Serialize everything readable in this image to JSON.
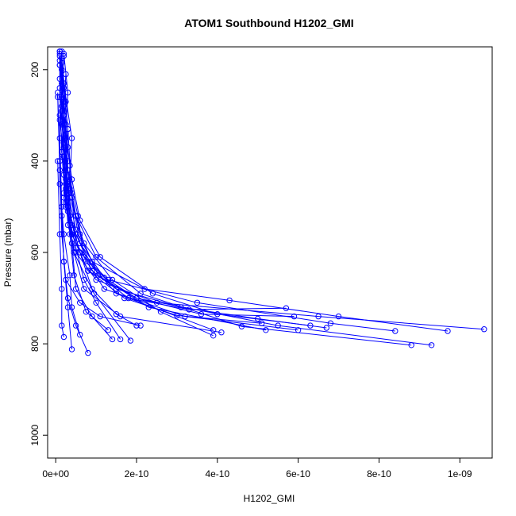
{
  "chart_data": {
    "type": "scatter",
    "mode": "lines+points",
    "title": "ATOM1 Southbound H1202_GMI",
    "xlabel": "H1202_GMI",
    "ylabel": "Pressure (mbar)",
    "xlim": [
      -2e-11,
      1.08e-09
    ],
    "ylim": [
      1050,
      150
    ],
    "y_reversed": true,
    "x_ticks": [
      0,
      2e-10,
      4e-10,
      6e-10,
      8e-10,
      1e-09
    ],
    "x_tick_labels": [
      "0e+00",
      "2e-10",
      "4e-10",
      "6e-10",
      "8e-10",
      "1e-09"
    ],
    "y_ticks": [
      200,
      400,
      600,
      800,
      1000
    ],
    "y_tick_labels": [
      "200",
      "400",
      "600",
      "800",
      "1000"
    ],
    "color": "#0000ff",
    "series": [
      {
        "x": [
          1.5e-11,
          1e-11,
          2e-11,
          1.5e-11,
          2.5e-11,
          3e-11,
          5e-11,
          1e-10,
          2.5e-10,
          6.5e-10,
          1.06e-09
        ],
        "y": [
          160,
          220,
          300,
          380,
          460,
          540,
          600,
          660,
          710,
          740,
          768
        ]
      },
      {
        "x": [
          1e-11,
          2e-11,
          1.5e-11,
          3e-11,
          2e-11,
          4e-11,
          8e-11,
          2e-10,
          5.5e-10,
          9.3e-10
        ],
        "y": [
          165,
          240,
          320,
          400,
          480,
          560,
          640,
          700,
          760,
          803
        ]
      },
      {
        "x": [
          2e-11,
          1.5e-11,
          2.5e-11,
          2e-11,
          3.5e-11,
          6e-11,
          1.3e-10,
          3.5e-10,
          6.8e-10,
          8.4e-10
        ],
        "y": [
          170,
          260,
          350,
          430,
          520,
          600,
          660,
          710,
          755,
          772
        ]
      },
      {
        "x": [
          1e-11,
          1.5e-11,
          1e-11,
          2e-11,
          3e-11,
          5e-11,
          9e-11,
          2.2e-10,
          4.3e-10,
          7e-10,
          9.7e-10
        ],
        "y": [
          160,
          230,
          310,
          390,
          470,
          550,
          620,
          680,
          705,
          740,
          772
        ]
      },
      {
        "x": [
          1.5e-11,
          2.5e-11,
          2e-11,
          3e-11,
          4e-11,
          8e-11,
          1.5e-10,
          3.1e-10,
          5e-10,
          6.7e-10
        ],
        "y": [
          175,
          270,
          360,
          450,
          540,
          620,
          680,
          720,
          745,
          765
        ]
      },
      {
        "x": [
          1e-11,
          2e-11,
          1.5e-11,
          3.5e-11,
          7e-11,
          1.4e-10,
          2.6e-10,
          3.9e-10
        ],
        "y": [
          180,
          280,
          380,
          480,
          580,
          660,
          730,
          782
        ]
      },
      {
        "x": [
          2e-11,
          3e-11,
          2.5e-11,
          4e-11,
          6e-11,
          1.1e-10,
          2.4e-10,
          4e-10,
          6.3e-10
        ],
        "y": [
          165,
          250,
          340,
          440,
          530,
          610,
          690,
          735,
          760
        ]
      },
      {
        "x": [
          1e-11,
          1.5e-11,
          2e-11,
          2.5e-11,
          4.5e-11,
          9e-11,
          1.8e-10,
          3.3e-10,
          5.7e-10
        ],
        "y": [
          190,
          290,
          390,
          490,
          570,
          640,
          700,
          725,
          722
        ]
      },
      {
        "x": [
          1.5e-11,
          2.5e-11,
          3e-11,
          5e-11,
          1e-10,
          2.1e-10,
          4.6e-10,
          8.8e-10
        ],
        "y": [
          200,
          320,
          420,
          520,
          610,
          690,
          762,
          803
        ]
      },
      {
        "x": [
          1e-11,
          1e-11,
          2e-11,
          4e-11,
          6e-11,
          1.2e-10,
          2e-10,
          3.6e-10,
          5.9e-10
        ],
        "y": [
          170,
          260,
          370,
          480,
          580,
          655,
          700,
          735,
          740
        ]
      },
      {
        "x": [
          2.5e-11,
          2e-11,
          3.5e-11,
          3e-11,
          4.5e-11,
          7e-11,
          1.6e-10,
          4.1e-10
        ],
        "y": [
          210,
          300,
          410,
          510,
          600,
          680,
          740,
          775
        ]
      },
      {
        "x": [
          1.5e-11,
          3e-11,
          2.5e-11,
          4e-11,
          8e-11,
          1.7e-10,
          3e-10,
          5.1e-10
        ],
        "y": [
          185,
          330,
          450,
          560,
          640,
          700,
          738,
          755
        ]
      },
      {
        "x": [
          1e-11,
          2e-11,
          3e-11,
          2e-11,
          5e-11,
          9e-11,
          1.5e-10,
          3.9e-10
        ],
        "y": [
          160,
          270,
          370,
          470,
          560,
          630,
          690,
          770
        ]
      },
      {
        "x": [
          2e-11,
          4e-11,
          3.5e-11,
          6e-11,
          1.05e-10,
          2.3e-10,
          5.2e-10
        ],
        "y": [
          230,
          350,
          460,
          560,
          650,
          720,
          770
        ]
      },
      {
        "x": [
          1e-11,
          1.5e-11,
          2.5e-11,
          4.5e-11,
          9.5e-11,
          1.85e-10
        ],
        "y": [
          240,
          380,
          500,
          600,
          690,
          793
        ]
      },
      {
        "x": [
          1.5e-11,
          2e-11,
          3e-11,
          5.5e-11,
          7e-11,
          1.2e-10,
          3.2e-10,
          6e-10
        ],
        "y": [
          175,
          300,
          420,
          520,
          610,
          680,
          740,
          770
        ]
      },
      {
        "x": [
          5e-12,
          1e-11,
          1.5e-11,
          2e-11,
          3e-11,
          5e-11,
          8e-11
        ],
        "y": [
          250,
          400,
          520,
          620,
          700,
          760,
          820
        ]
      },
      {
        "x": [
          1e-11,
          1e-11,
          2e-11,
          3.5e-11,
          4e-11,
          6e-11
        ],
        "y": [
          300,
          450,
          560,
          650,
          720,
          780
        ]
      },
      {
        "x": [
          2e-11,
          3e-11,
          4e-11,
          5e-11,
          9e-11,
          1.4e-10
        ],
        "y": [
          320,
          460,
          580,
          680,
          740,
          790
        ]
      },
      {
        "x": [
          1e-11,
          1.5e-11,
          2e-11,
          3e-11,
          4e-11
        ],
        "y": [
          350,
          500,
          620,
          720,
          812
        ]
      },
      {
        "x": [
          5e-12,
          1e-11,
          1.5e-11,
          2.5e-11,
          6e-11,
          1.1e-10,
          2.1e-10
        ],
        "y": [
          260,
          420,
          560,
          660,
          710,
          740,
          760
        ]
      },
      {
        "x": [
          1.5e-11,
          2.5e-11,
          3.5e-11,
          4.5e-11,
          7.5e-11,
          1.3e-10
        ],
        "y": [
          280,
          440,
          560,
          650,
          730,
          770
        ]
      },
      {
        "x": [
          1e-11,
          2e-11,
          3e-11,
          6e-11,
          9e-11,
          1.5e-10,
          2e-10
        ],
        "y": [
          190,
          360,
          500,
          600,
          680,
          735,
          760
        ]
      },
      {
        "x": [
          5e-12,
          1e-11,
          1.5e-11,
          1.5e-11,
          2e-11
        ],
        "y": [
          400,
          560,
          680,
          760,
          785
        ]
      },
      {
        "x": [
          3e-11,
          4e-11,
          5e-11,
          7e-11,
          1e-10,
          1.6e-10
        ],
        "y": [
          330,
          470,
          590,
          660,
          710,
          790
        ]
      }
    ]
  }
}
